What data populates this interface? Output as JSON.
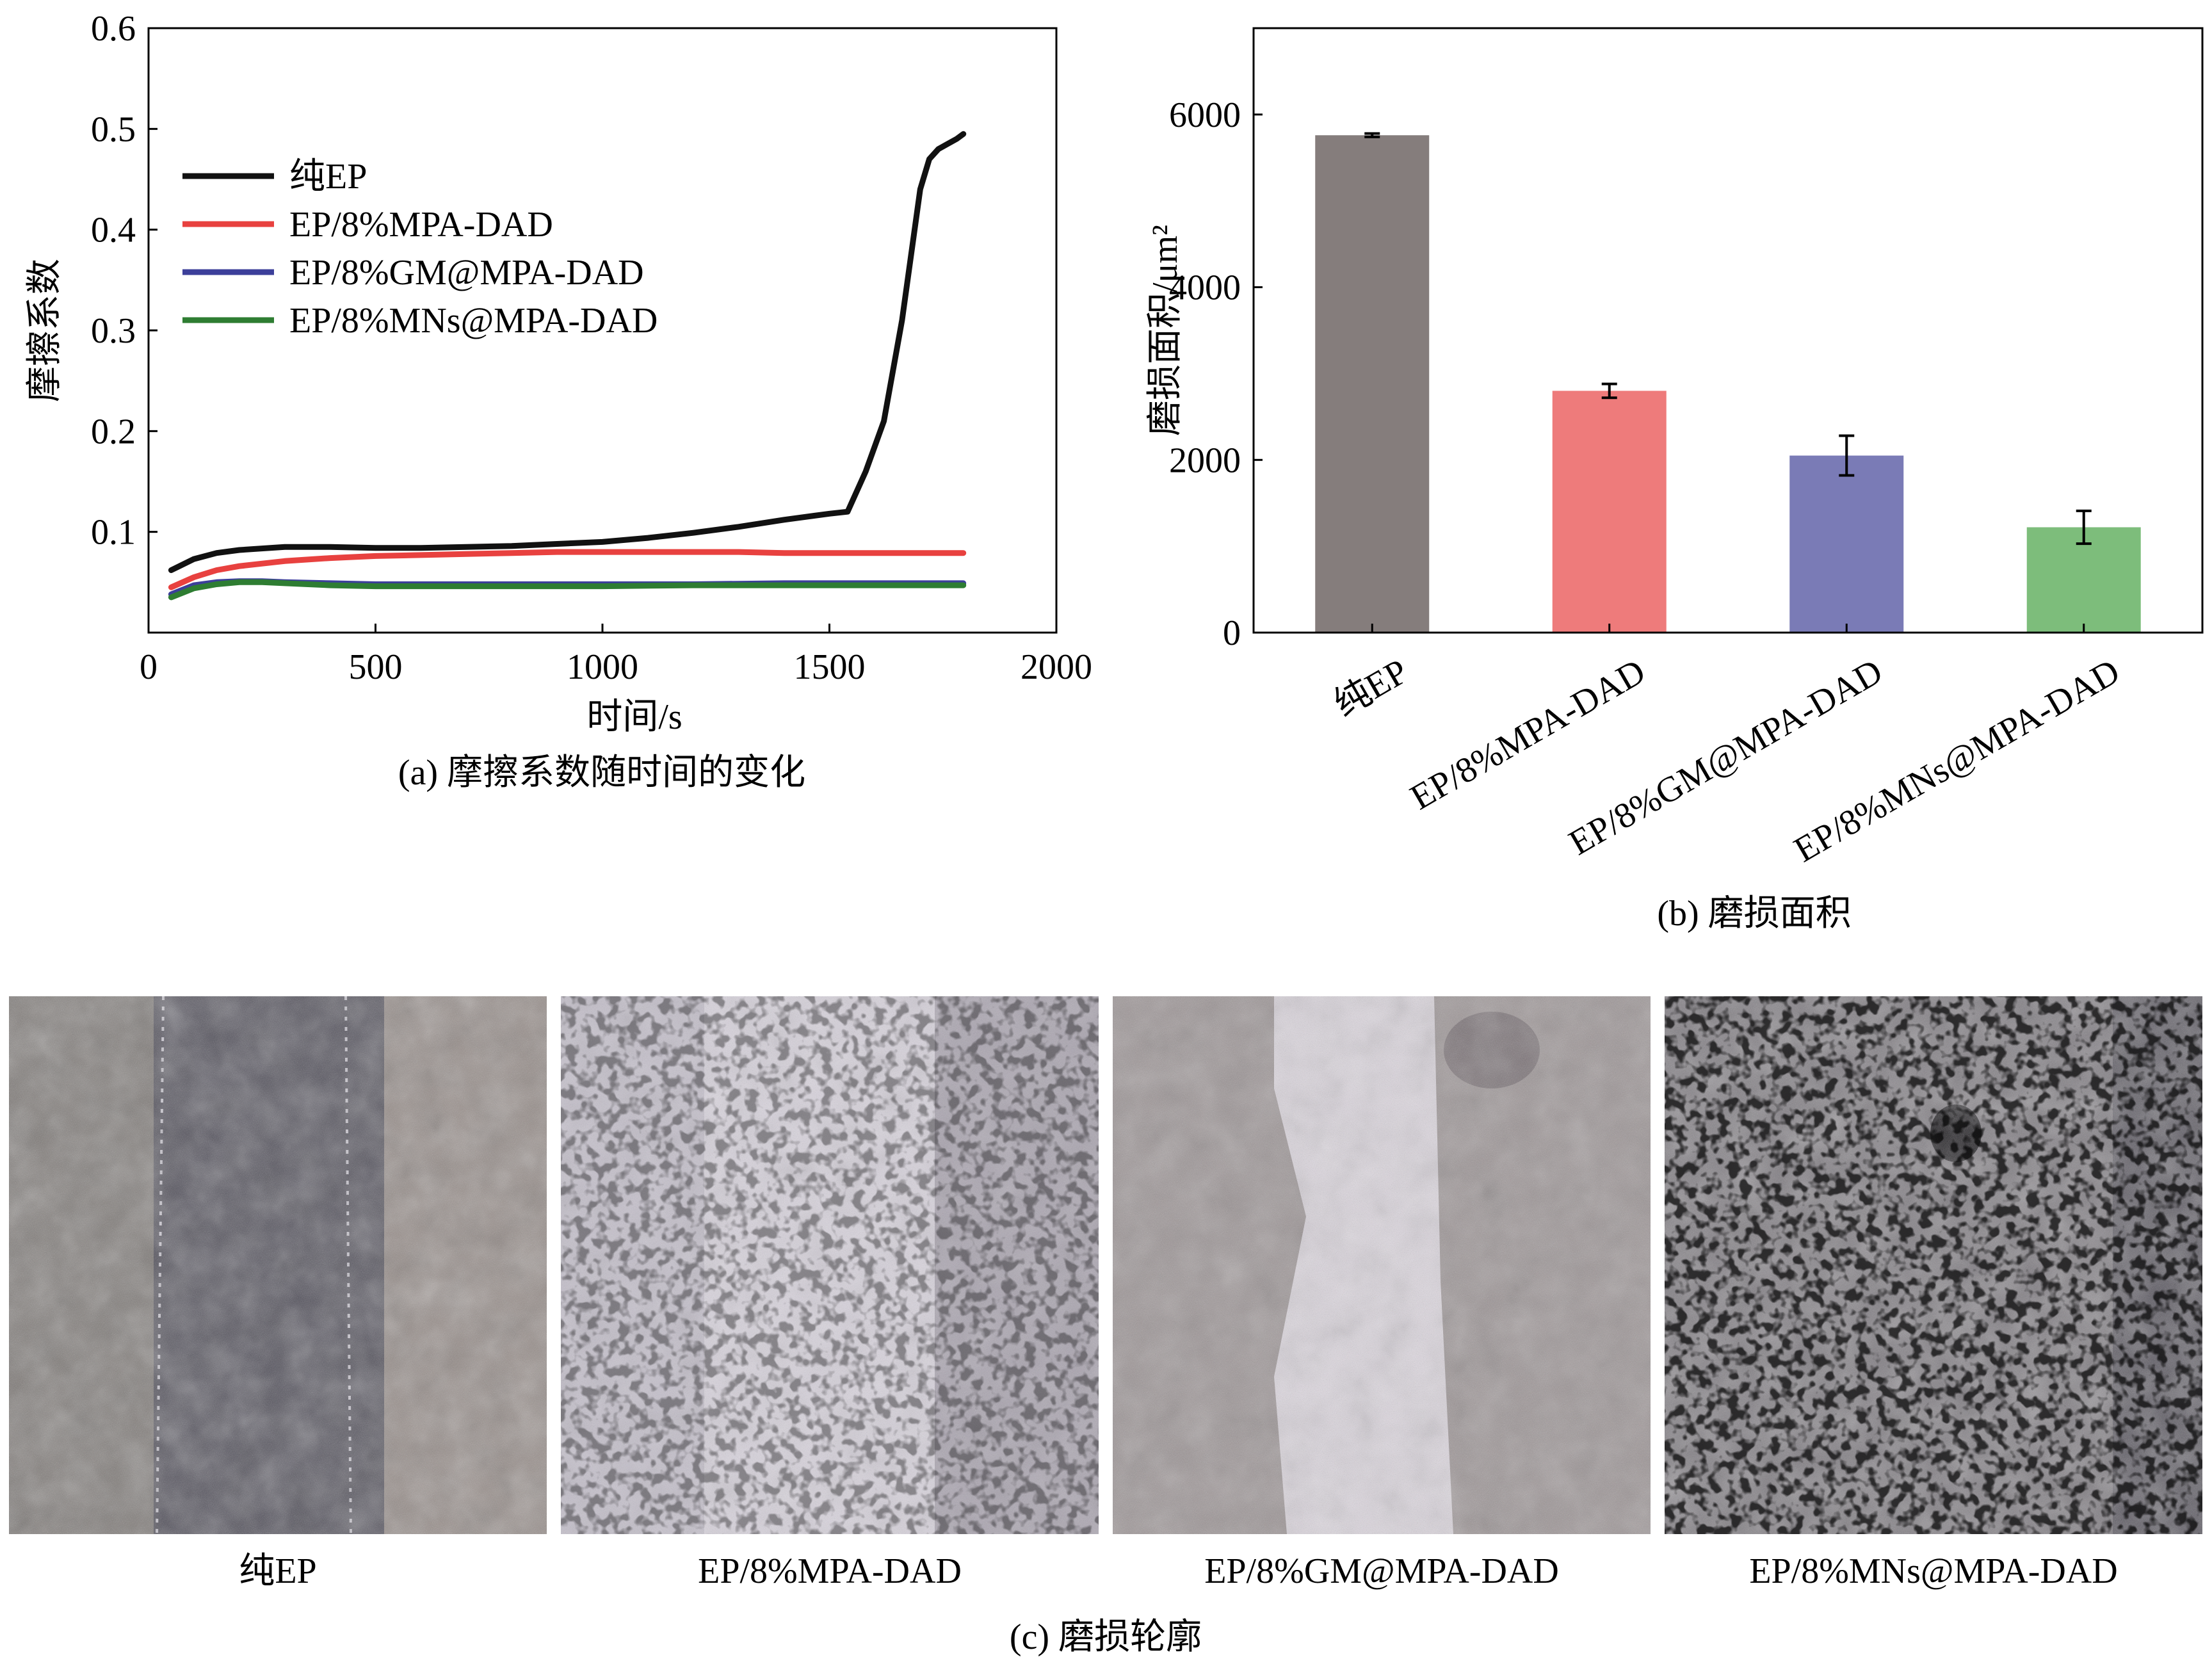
{
  "chart_data": [
    {
      "id": "a",
      "type": "line",
      "title": "",
      "caption": "(a) 摩擦系数随时间的变化",
      "xlabel": "时间/s",
      "ylabel": "摩擦系数",
      "xlim": [
        0,
        2000
      ],
      "ylim": [
        0,
        0.6
      ],
      "xticks": [
        "0",
        "500",
        "1000",
        "1500",
        "2000"
      ],
      "yticks": [
        "0.1",
        "0.2",
        "0.3",
        "0.4",
        "0.5",
        "0.6"
      ],
      "legend_position": "top-left",
      "series": [
        {
          "name": "纯EP",
          "color": "#111111",
          "x": [
            50,
            100,
            150,
            200,
            300,
            400,
            500,
            600,
            700,
            800,
            900,
            1000,
            1100,
            1200,
            1300,
            1400,
            1500,
            1540,
            1580,
            1620,
            1660,
            1700,
            1720,
            1740,
            1760,
            1780,
            1795
          ],
          "y": [
            0.062,
            0.073,
            0.079,
            0.082,
            0.085,
            0.085,
            0.084,
            0.084,
            0.085,
            0.086,
            0.088,
            0.09,
            0.094,
            0.099,
            0.105,
            0.112,
            0.118,
            0.12,
            0.16,
            0.21,
            0.31,
            0.44,
            0.47,
            0.48,
            0.485,
            0.49,
            0.495
          ]
        },
        {
          "name": "EP/8%MPA-DAD",
          "color": "#e8413f",
          "x": [
            50,
            100,
            150,
            200,
            300,
            400,
            500,
            600,
            700,
            800,
            900,
            1000,
            1100,
            1200,
            1300,
            1400,
            1500,
            1600,
            1700,
            1795
          ],
          "y": [
            0.045,
            0.055,
            0.062,
            0.066,
            0.071,
            0.074,
            0.076,
            0.077,
            0.078,
            0.079,
            0.08,
            0.08,
            0.08,
            0.08,
            0.08,
            0.079,
            0.079,
            0.079,
            0.079,
            0.079
          ]
        },
        {
          "name": "EP/8%GM@MPA-DAD",
          "color": "#3c3f9a",
          "x": [
            50,
            100,
            150,
            200,
            250,
            300,
            400,
            500,
            600,
            700,
            800,
            900,
            1000,
            1200,
            1400,
            1600,
            1795
          ],
          "y": [
            0.038,
            0.047,
            0.05,
            0.051,
            0.051,
            0.05,
            0.049,
            0.048,
            0.048,
            0.048,
            0.048,
            0.048,
            0.048,
            0.048,
            0.049,
            0.049,
            0.049
          ]
        },
        {
          "name": "EP/8%MNs@MPA-DAD",
          "color": "#2e7d32",
          "x": [
            50,
            100,
            150,
            200,
            250,
            300,
            400,
            500,
            600,
            700,
            800,
            900,
            1000,
            1200,
            1400,
            1600,
            1795
          ],
          "y": [
            0.035,
            0.044,
            0.048,
            0.05,
            0.05,
            0.049,
            0.047,
            0.046,
            0.046,
            0.046,
            0.046,
            0.046,
            0.046,
            0.047,
            0.047,
            0.047,
            0.047
          ]
        }
      ]
    },
    {
      "id": "b",
      "type": "bar",
      "title": "",
      "caption": "(b) 磨损面积",
      "xlabel": "",
      "ylabel": "磨损面积/μm²",
      "ylim": [
        0,
        7000
      ],
      "yticks": [
        "0",
        "2000",
        "4000",
        "6000"
      ],
      "categories": [
        "纯EP",
        "EP/8%MPA-DAD",
        "EP/8%GM@MPA-DAD",
        "EP/8%MNs@MPA-DAD"
      ],
      "values": [
        5760,
        2800,
        2050,
        1220
      ],
      "errors": [
        20,
        80,
        230,
        190
      ],
      "colors": [
        "#857d7c",
        "#ee7b7b",
        "#7a7bb6",
        "#7dbd7b"
      ]
    }
  ],
  "panel_c": {
    "caption": "(c) 磨损轮廓",
    "labels": [
      "纯EP",
      "EP/8%MPA-DAD",
      "EP/8%GM@MPA-DAD",
      "EP/8%MNs@MPA-DAD"
    ]
  }
}
